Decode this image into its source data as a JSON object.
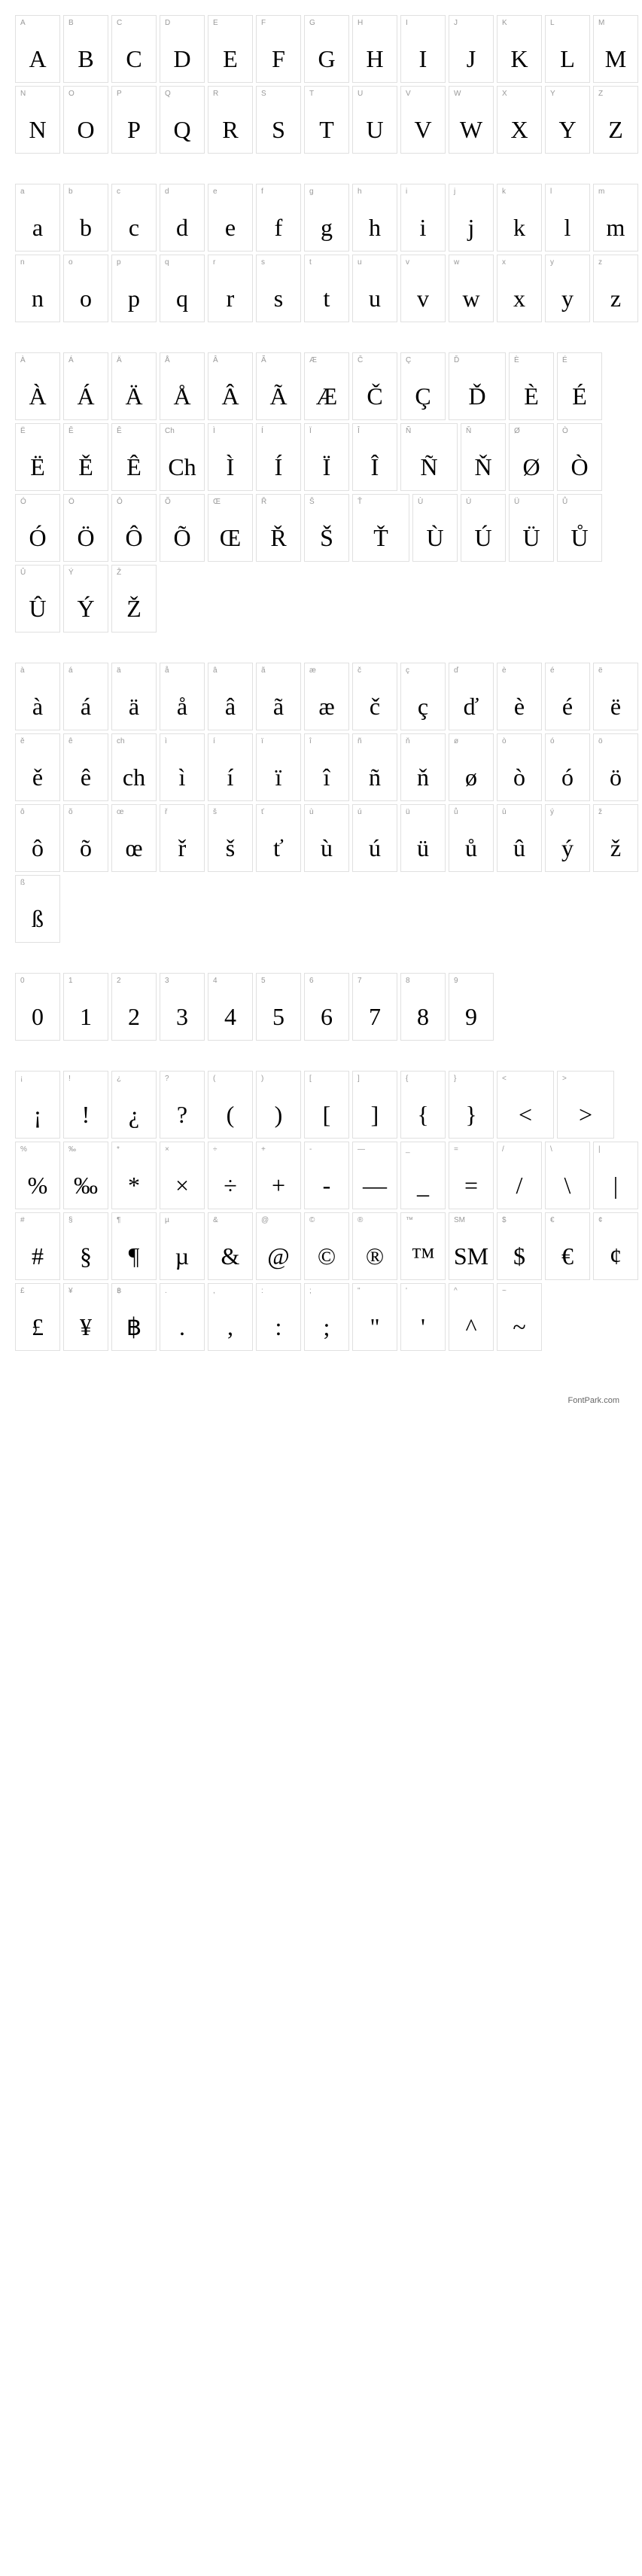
{
  "footer": "FontPark.com",
  "sections": [
    {
      "id": "uppercase",
      "cells": [
        {
          "label": "A",
          "glyph": "A"
        },
        {
          "label": "B",
          "glyph": "B"
        },
        {
          "label": "C",
          "glyph": "C"
        },
        {
          "label": "D",
          "glyph": "D"
        },
        {
          "label": "E",
          "glyph": "E"
        },
        {
          "label": "F",
          "glyph": "F"
        },
        {
          "label": "G",
          "glyph": "G"
        },
        {
          "label": "H",
          "glyph": "H"
        },
        {
          "label": "I",
          "glyph": "I"
        },
        {
          "label": "J",
          "glyph": "J"
        },
        {
          "label": "K",
          "glyph": "K"
        },
        {
          "label": "L",
          "glyph": "L"
        },
        {
          "label": "M",
          "glyph": "M"
        },
        {
          "label": "N",
          "glyph": "N"
        },
        {
          "label": "O",
          "glyph": "O"
        },
        {
          "label": "P",
          "glyph": "P"
        },
        {
          "label": "Q",
          "glyph": "Q"
        },
        {
          "label": "R",
          "glyph": "R"
        },
        {
          "label": "S",
          "glyph": "S"
        },
        {
          "label": "T",
          "glyph": "T"
        },
        {
          "label": "U",
          "glyph": "U"
        },
        {
          "label": "V",
          "glyph": "V"
        },
        {
          "label": "W",
          "glyph": "W"
        },
        {
          "label": "X",
          "glyph": "X"
        },
        {
          "label": "Y",
          "glyph": "Y"
        },
        {
          "label": "Z",
          "glyph": "Z"
        }
      ]
    },
    {
      "id": "lowercase",
      "cells": [
        {
          "label": "a",
          "glyph": "a"
        },
        {
          "label": "b",
          "glyph": "b"
        },
        {
          "label": "c",
          "glyph": "c"
        },
        {
          "label": "d",
          "glyph": "d"
        },
        {
          "label": "e",
          "glyph": "e"
        },
        {
          "label": "f",
          "glyph": "f"
        },
        {
          "label": "g",
          "glyph": "g"
        },
        {
          "label": "h",
          "glyph": "h"
        },
        {
          "label": "i",
          "glyph": "i"
        },
        {
          "label": "j",
          "glyph": "j"
        },
        {
          "label": "k",
          "glyph": "k"
        },
        {
          "label": "l",
          "glyph": "l"
        },
        {
          "label": "m",
          "glyph": "m"
        },
        {
          "label": "n",
          "glyph": "n"
        },
        {
          "label": "o",
          "glyph": "o"
        },
        {
          "label": "p",
          "glyph": "p"
        },
        {
          "label": "q",
          "glyph": "q"
        },
        {
          "label": "r",
          "glyph": "r"
        },
        {
          "label": "s",
          "glyph": "s"
        },
        {
          "label": "t",
          "glyph": "t"
        },
        {
          "label": "u",
          "glyph": "u"
        },
        {
          "label": "v",
          "glyph": "v"
        },
        {
          "label": "w",
          "glyph": "w"
        },
        {
          "label": "x",
          "glyph": "x"
        },
        {
          "label": "y",
          "glyph": "y"
        },
        {
          "label": "z",
          "glyph": "z"
        }
      ]
    },
    {
      "id": "accented-upper",
      "cells": [
        {
          "label": "À",
          "glyph": "À"
        },
        {
          "label": "Á",
          "glyph": "Á"
        },
        {
          "label": "Ä",
          "glyph": "Ä"
        },
        {
          "label": "Å",
          "glyph": "Å"
        },
        {
          "label": "Â",
          "glyph": "Â"
        },
        {
          "label": "Ã",
          "glyph": "Ã"
        },
        {
          "label": "Æ",
          "glyph": "Æ"
        },
        {
          "label": "Č",
          "glyph": "Č"
        },
        {
          "label": "Ç",
          "glyph": "Ç"
        },
        {
          "label": "Ď",
          "glyph": "Ď",
          "wide": true
        },
        {
          "label": "È",
          "glyph": "È"
        },
        {
          "label": "É",
          "glyph": "É"
        },
        {
          "label": "Ë",
          "glyph": "Ë"
        },
        {
          "label": "Ě",
          "glyph": "Ě"
        },
        {
          "label": "Ê",
          "glyph": "Ê"
        },
        {
          "label": "Ch",
          "glyph": "Ch"
        },
        {
          "label": "Ì",
          "glyph": "Ì"
        },
        {
          "label": "Í",
          "glyph": "Í"
        },
        {
          "label": "Ï",
          "glyph": "Ï"
        },
        {
          "label": "Î",
          "glyph": "Î"
        },
        {
          "label": "Ñ",
          "glyph": "Ñ",
          "wide": true
        },
        {
          "label": "Ň",
          "glyph": "Ň"
        },
        {
          "label": "Ø",
          "glyph": "Ø"
        },
        {
          "label": "Ò",
          "glyph": "Ò"
        },
        {
          "label": "Ó",
          "glyph": "Ó"
        },
        {
          "label": "Ö",
          "glyph": "Ö"
        },
        {
          "label": "Ô",
          "glyph": "Ô"
        },
        {
          "label": "Õ",
          "glyph": "Õ"
        },
        {
          "label": "Œ",
          "glyph": "Œ"
        },
        {
          "label": "Ř",
          "glyph": "Ř"
        },
        {
          "label": "Š",
          "glyph": "Š"
        },
        {
          "label": "Ť",
          "glyph": "Ť",
          "wide": true
        },
        {
          "label": "Ù",
          "glyph": "Ù"
        },
        {
          "label": "Ú",
          "glyph": "Ú"
        },
        {
          "label": "Ü",
          "glyph": "Ü"
        },
        {
          "label": "Ů",
          "glyph": "Ů"
        },
        {
          "label": "Û",
          "glyph": "Û"
        },
        {
          "label": "Ý",
          "glyph": "Ý"
        },
        {
          "label": "Ž",
          "glyph": "Ž"
        }
      ]
    },
    {
      "id": "accented-lower",
      "cells": [
        {
          "label": "à",
          "glyph": "à"
        },
        {
          "label": "á",
          "glyph": "á"
        },
        {
          "label": "ä",
          "glyph": "ä"
        },
        {
          "label": "å",
          "glyph": "å"
        },
        {
          "label": "â",
          "glyph": "â"
        },
        {
          "label": "ã",
          "glyph": "ã"
        },
        {
          "label": "æ",
          "glyph": "æ"
        },
        {
          "label": "č",
          "glyph": "č"
        },
        {
          "label": "ç",
          "glyph": "ç"
        },
        {
          "label": "ď",
          "glyph": "ď"
        },
        {
          "label": "è",
          "glyph": "è"
        },
        {
          "label": "é",
          "glyph": "é"
        },
        {
          "label": "ë",
          "glyph": "ë"
        },
        {
          "label": "ě",
          "glyph": "ě"
        },
        {
          "label": "ê",
          "glyph": "ê"
        },
        {
          "label": "ch",
          "glyph": "ch"
        },
        {
          "label": "ì",
          "glyph": "ì"
        },
        {
          "label": "í",
          "glyph": "í"
        },
        {
          "label": "ï",
          "glyph": "ï"
        },
        {
          "label": "î",
          "glyph": "î"
        },
        {
          "label": "ñ",
          "glyph": "ñ"
        },
        {
          "label": "ň",
          "glyph": "ň"
        },
        {
          "label": "ø",
          "glyph": "ø"
        },
        {
          "label": "ò",
          "glyph": "ò"
        },
        {
          "label": "ó",
          "glyph": "ó"
        },
        {
          "label": "ö",
          "glyph": "ö"
        },
        {
          "label": "ô",
          "glyph": "ô"
        },
        {
          "label": "õ",
          "glyph": "õ"
        },
        {
          "label": "œ",
          "glyph": "œ"
        },
        {
          "label": "ř",
          "glyph": "ř"
        },
        {
          "label": "š",
          "glyph": "š"
        },
        {
          "label": "ť",
          "glyph": "ť"
        },
        {
          "label": "ù",
          "glyph": "ù"
        },
        {
          "label": "ú",
          "glyph": "ú"
        },
        {
          "label": "ü",
          "glyph": "ü"
        },
        {
          "label": "ů",
          "glyph": "ů"
        },
        {
          "label": "û",
          "glyph": "û"
        },
        {
          "label": "ý",
          "glyph": "ý"
        },
        {
          "label": "ž",
          "glyph": "ž"
        },
        {
          "label": "ß",
          "glyph": "ß"
        }
      ]
    },
    {
      "id": "digits",
      "cells": [
        {
          "label": "0",
          "glyph": "0"
        },
        {
          "label": "1",
          "glyph": "1"
        },
        {
          "label": "2",
          "glyph": "2"
        },
        {
          "label": "3",
          "glyph": "3"
        },
        {
          "label": "4",
          "glyph": "4"
        },
        {
          "label": "5",
          "glyph": "5"
        },
        {
          "label": "6",
          "glyph": "6"
        },
        {
          "label": "7",
          "glyph": "7"
        },
        {
          "label": "8",
          "glyph": "8"
        },
        {
          "label": "9",
          "glyph": "9"
        }
      ]
    },
    {
      "id": "symbols",
      "cells": [
        {
          "label": "¡",
          "glyph": "¡",
          "serif": true
        },
        {
          "label": "!",
          "glyph": "!",
          "serif": true
        },
        {
          "label": "¿",
          "glyph": "¿",
          "serif": true
        },
        {
          "label": "?",
          "glyph": "?",
          "serif": true
        },
        {
          "label": "(",
          "glyph": "(",
          "serif": true
        },
        {
          "label": ")",
          "glyph": ")",
          "serif": true
        },
        {
          "label": "[",
          "glyph": "[",
          "serif": true
        },
        {
          "label": "]",
          "glyph": "]",
          "serif": true
        },
        {
          "label": "{",
          "glyph": "{",
          "serif": true
        },
        {
          "label": "}",
          "glyph": "}",
          "serif": true
        },
        {
          "label": "<",
          "glyph": "<",
          "serif": true,
          "wide": true
        },
        {
          "label": ">",
          "glyph": ">",
          "serif": true,
          "wide": true
        },
        {
          "label": "%",
          "glyph": "%",
          "serif": true
        },
        {
          "label": "‰",
          "glyph": "‰",
          "serif": true
        },
        {
          "label": "*",
          "glyph": "*",
          "serif": true
        },
        {
          "label": "×",
          "glyph": "×",
          "serif": true
        },
        {
          "label": "÷",
          "glyph": "÷",
          "serif": true
        },
        {
          "label": "+",
          "glyph": "+",
          "serif": true
        },
        {
          "label": "-",
          "glyph": "-",
          "serif": true
        },
        {
          "label": "—",
          "glyph": "—",
          "serif": true
        },
        {
          "label": "_",
          "glyph": "_",
          "serif": true
        },
        {
          "label": "=",
          "glyph": "=",
          "serif": true
        },
        {
          "label": "/",
          "glyph": "/",
          "serif": true
        },
        {
          "label": "\\",
          "glyph": "\\",
          "serif": true
        },
        {
          "label": "|",
          "glyph": "|",
          "serif": true
        },
        {
          "label": "#",
          "glyph": "#",
          "serif": true
        },
        {
          "label": "§",
          "glyph": "§",
          "serif": true
        },
        {
          "label": "¶",
          "glyph": "¶",
          "serif": true
        },
        {
          "label": "µ",
          "glyph": "µ",
          "serif": true
        },
        {
          "label": "&",
          "glyph": "&",
          "serif": true
        },
        {
          "label": "@",
          "glyph": "@",
          "serif": true
        },
        {
          "label": "©",
          "glyph": "©",
          "serif": true
        },
        {
          "label": "®",
          "glyph": "®",
          "serif": true
        },
        {
          "label": "™",
          "glyph": "™",
          "serif": true
        },
        {
          "label": "SM",
          "glyph": "SM",
          "serif": true
        },
        {
          "label": "$",
          "glyph": "$",
          "serif": true
        },
        {
          "label": "€",
          "glyph": "€",
          "serif": true
        },
        {
          "label": "¢",
          "glyph": "¢",
          "serif": true
        },
        {
          "label": "£",
          "glyph": "£",
          "serif": true
        },
        {
          "label": "¥",
          "glyph": "¥",
          "serif": true
        },
        {
          "label": "฿",
          "glyph": "฿",
          "serif": true
        },
        {
          "label": ".",
          "glyph": ".",
          "serif": true
        },
        {
          "label": ",",
          "glyph": ",",
          "serif": true
        },
        {
          "label": ":",
          "glyph": ":",
          "serif": true
        },
        {
          "label": ";",
          "glyph": ";",
          "serif": true
        },
        {
          "label": "\"",
          "glyph": "\"",
          "serif": true
        },
        {
          "label": "'",
          "glyph": "'",
          "serif": true
        },
        {
          "label": "^",
          "glyph": "^",
          "serif": true
        },
        {
          "label": "~",
          "glyph": "~",
          "serif": true
        }
      ]
    }
  ]
}
